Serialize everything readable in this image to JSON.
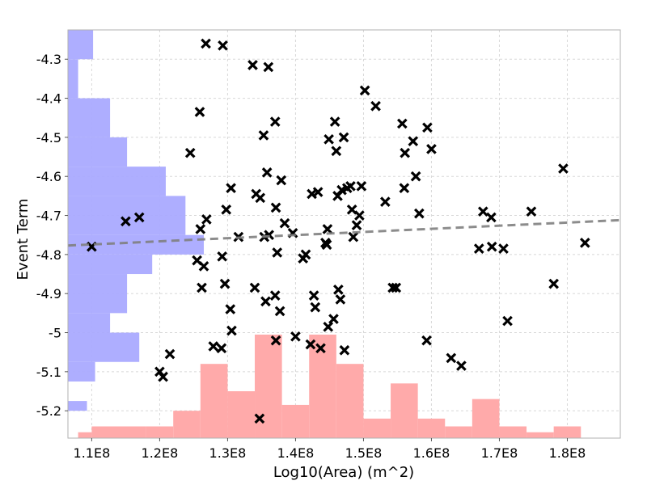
{
  "chart_data": {
    "type": "scatter",
    "xlabel": "Log10(Area) (m^2)",
    "ylabel": "Event Term",
    "xlim": [
      106500000,
      187800000
    ],
    "ylim": [
      -5.27,
      -4.225
    ],
    "grid": true,
    "x_ticks": [
      110000000,
      120000000,
      130000000,
      140000000,
      150000000,
      160000000,
      170000000,
      180000000
    ],
    "x_tick_labels": [
      "1.1E8",
      "1.2E8",
      "1.3E8",
      "1.4E8",
      "1.5E8",
      "1.6E8",
      "1.7E8",
      "1.8E8"
    ],
    "y_ticks": [
      -4.3,
      -4.4,
      -4.5,
      -4.6,
      -4.7,
      -4.8,
      -4.9,
      -5.0,
      -5.1,
      -5.2
    ],
    "y_tick_labels": [
      "-4.3",
      "-4.4",
      "-4.5",
      "-4.6",
      "-4.7",
      "-4.8",
      "-4.9",
      "-5",
      "-5.1",
      "-5.2"
    ],
    "scatter_color": "#000000",
    "trend_color": "#808080",
    "x_hist_color": "#ffaaaa",
    "y_hist_color": "#aaaaff",
    "points": [
      [
        110000000,
        -4.78
      ],
      [
        115000000,
        -4.715
      ],
      [
        117000000,
        -4.705
      ],
      [
        120000000,
        -5.1
      ],
      [
        120500000,
        -5.113
      ],
      [
        121500000,
        -5.055
      ],
      [
        124500000,
        -4.54
      ],
      [
        125500000,
        -4.815
      ],
      [
        126000000,
        -4.735
      ],
      [
        125900000,
        -4.435
      ],
      [
        126200000,
        -4.885
      ],
      [
        126500000,
        -4.83
      ],
      [
        126900000,
        -4.71
      ],
      [
        126800000,
        -4.26
      ],
      [
        127900000,
        -5.035
      ],
      [
        129300000,
        -4.265
      ],
      [
        129100000,
        -5.04
      ],
      [
        129200000,
        -4.805
      ],
      [
        129600000,
        -4.875
      ],
      [
        129800000,
        -4.685
      ],
      [
        130400000,
        -4.94
      ],
      [
        130600000,
        -4.995
      ],
      [
        130500000,
        -4.63
      ],
      [
        131600000,
        -4.755
      ],
      [
        133700000,
        -4.315
      ],
      [
        134200000,
        -4.645
      ],
      [
        134000000,
        -4.885
      ],
      [
        134700000,
        -5.22
      ],
      [
        134800000,
        -4.655
      ],
      [
        135300000,
        -4.495
      ],
      [
        135400000,
        -4.755
      ],
      [
        135600000,
        -4.92
      ],
      [
        135800000,
        -4.59
      ],
      [
        136000000,
        -4.32
      ],
      [
        136100000,
        -4.75
      ],
      [
        137000000,
        -4.46
      ],
      [
        137100000,
        -4.68
      ],
      [
        137100000,
        -5.02
      ],
      [
        137000000,
        -4.905
      ],
      [
        137300000,
        -4.795
      ],
      [
        137700000,
        -4.945
      ],
      [
        137900000,
        -4.61
      ],
      [
        138400000,
        -4.72
      ],
      [
        139600000,
        -4.745
      ],
      [
        140000000,
        -5.01
      ],
      [
        141100000,
        -4.81
      ],
      [
        141500000,
        -4.8
      ],
      [
        142200000,
        -5.03
      ],
      [
        142400000,
        -4.645
      ],
      [
        142700000,
        -4.905
      ],
      [
        142900000,
        -4.935
      ],
      [
        143300000,
        -4.64
      ],
      [
        143700000,
        -5.04
      ],
      [
        144400000,
        -4.77
      ],
      [
        144600000,
        -4.775
      ],
      [
        144700000,
        -4.735
      ],
      [
        144800000,
        -4.985
      ],
      [
        144900000,
        -4.505
      ],
      [
        145600000,
        -4.965
      ],
      [
        145800000,
        -4.46
      ],
      [
        146000000,
        -4.535
      ],
      [
        146200000,
        -4.65
      ],
      [
        146300000,
        -4.89
      ],
      [
        146600000,
        -4.915
      ],
      [
        146800000,
        -4.635
      ],
      [
        147100000,
        -4.5
      ],
      [
        147200000,
        -5.045
      ],
      [
        147600000,
        -4.63
      ],
      [
        148100000,
        -4.625
      ],
      [
        148300000,
        -4.685
      ],
      [
        148500000,
        -4.755
      ],
      [
        149000000,
        -4.725
      ],
      [
        149400000,
        -4.7
      ],
      [
        149700000,
        -4.625
      ],
      [
        150200000,
        -4.38
      ],
      [
        151800000,
        -4.42
      ],
      [
        153200000,
        -4.665
      ],
      [
        154300000,
        -4.885
      ],
      [
        154800000,
        -4.885
      ],
      [
        155700000,
        -4.465
      ],
      [
        156000000,
        -4.63
      ],
      [
        156100000,
        -4.54
      ],
      [
        157300000,
        -4.51
      ],
      [
        157700000,
        -4.6
      ],
      [
        158200000,
        -4.695
      ],
      [
        159300000,
        -5.02
      ],
      [
        159400000,
        -4.475
      ],
      [
        160000000,
        -4.53
      ],
      [
        162900000,
        -5.065
      ],
      [
        164400000,
        -5.085
      ],
      [
        167000000,
        -4.785
      ],
      [
        167600000,
        -4.69
      ],
      [
        168800000,
        -4.705
      ],
      [
        168900000,
        -4.78
      ],
      [
        170600000,
        -4.785
      ],
      [
        171200000,
        -4.97
      ],
      [
        174700000,
        -4.69
      ],
      [
        178000000,
        -4.875
      ],
      [
        179400000,
        -4.58
      ],
      [
        182600000,
        -4.77
      ]
    ],
    "trend": {
      "x": [
        106500000,
        187800000
      ],
      "y": [
        -4.777,
        -4.712
      ]
    },
    "x_hist": {
      "edges": [
        108000000,
        110000000,
        114000000,
        118000000,
        122000000,
        126000000,
        130000000,
        134000000,
        138000000,
        142000000,
        146000000,
        150000000,
        154000000,
        158000000,
        162000000,
        166000000,
        170000000,
        174000000,
        178000000,
        182000000,
        186000000
      ],
      "values": [
        -5.255,
        -5.24,
        -5.24,
        -5.24,
        -5.2,
        -5.08,
        -5.15,
        -5.005,
        -5.185,
        -5.005,
        -5.08,
        -5.22,
        -5.13,
        -5.22,
        -5.24,
        -5.17,
        -5.24,
        -5.255,
        -5.24,
        -5.27
      ]
    },
    "y_hist": {
      "bins": [
        [
          -5.2,
          -5.175,
          109300000
        ],
        [
          -4.3,
          -4.225,
          110200000
        ],
        [
          -4.4,
          -4.3,
          108000000
        ],
        [
          -5.125,
          -5.075,
          110500000
        ],
        [
          -5.075,
          -5.0,
          117000000
        ],
        [
          -5.0,
          -4.95,
          112700000
        ],
        [
          -4.95,
          -4.85,
          115200000
        ],
        [
          -4.85,
          -4.8,
          118900000
        ],
        [
          -4.8,
          -4.75,
          126500000
        ],
        [
          -4.75,
          -4.65,
          123800000
        ],
        [
          -4.65,
          -4.575,
          120900000
        ],
        [
          -4.575,
          -4.5,
          115200000
        ],
        [
          -4.5,
          -4.4,
          112700000
        ]
      ]
    }
  }
}
